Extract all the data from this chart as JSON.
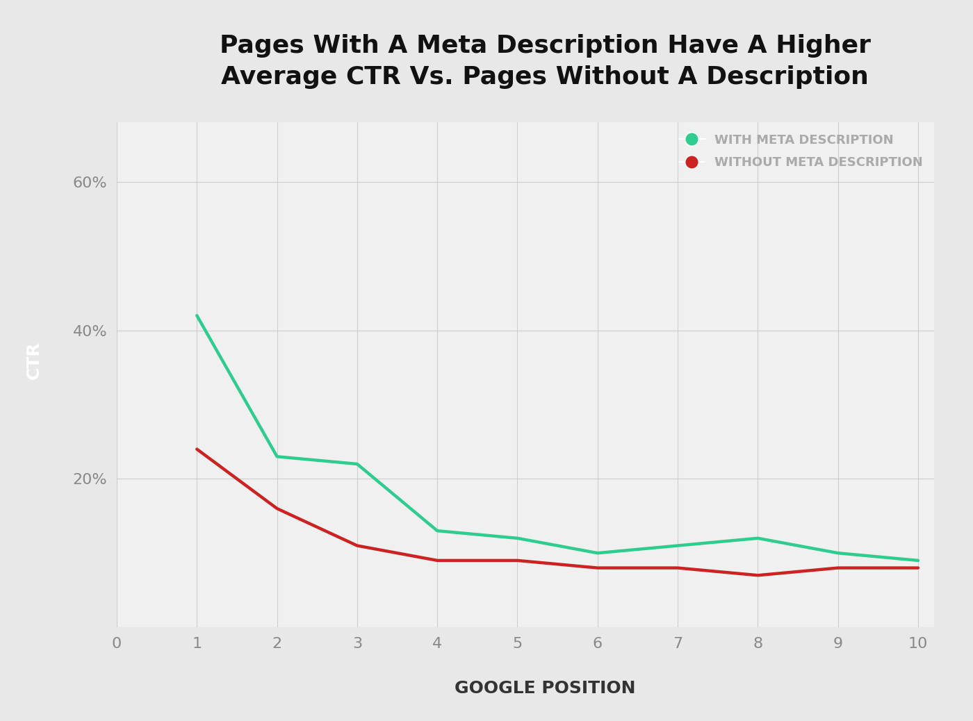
{
  "title_line1": "Pages With A Meta Description Have A Higher",
  "title_line2": "Average CTR Vs. Pages Without A Description",
  "xlabel": "GOOGLE POSITION",
  "ylabel": "CTR",
  "x_values": [
    1,
    2,
    3,
    4,
    5,
    6,
    7,
    8,
    9,
    10
  ],
  "with_desc": [
    0.42,
    0.23,
    0.22,
    0.13,
    0.12,
    0.1,
    0.11,
    0.12,
    0.1,
    0.09
  ],
  "without_desc": [
    0.24,
    0.16,
    0.11,
    0.09,
    0.09,
    0.08,
    0.08,
    0.07,
    0.08,
    0.08
  ],
  "color_with": "#2ECC8F",
  "color_without": "#CC2222",
  "legend_with": "WITH META DESCRIPTION",
  "legend_without": "WITHOUT META DESCRIPTION",
  "bg_outer": "#E8E8E8",
  "bg_plot": "#F0F0F0",
  "bg_left_bar": "#1A1A1A",
  "grid_color": "#CCCCCC",
  "title_color": "#111111",
  "axis_label_color": "#333333",
  "tick_color": "#888888",
  "legend_text_color": "#AAAAAA",
  "yticks": [
    0.0,
    0.2,
    0.4,
    0.6
  ],
  "ytick_labels": [
    "",
    "20%",
    "40%",
    "60%"
  ],
  "xticks": [
    0,
    1,
    2,
    3,
    4,
    5,
    6,
    7,
    8,
    9,
    10
  ],
  "ylim": [
    0.0,
    0.68
  ],
  "xlim": [
    0,
    10.2
  ],
  "line_width": 3.2,
  "left_bar_width": 0.07
}
